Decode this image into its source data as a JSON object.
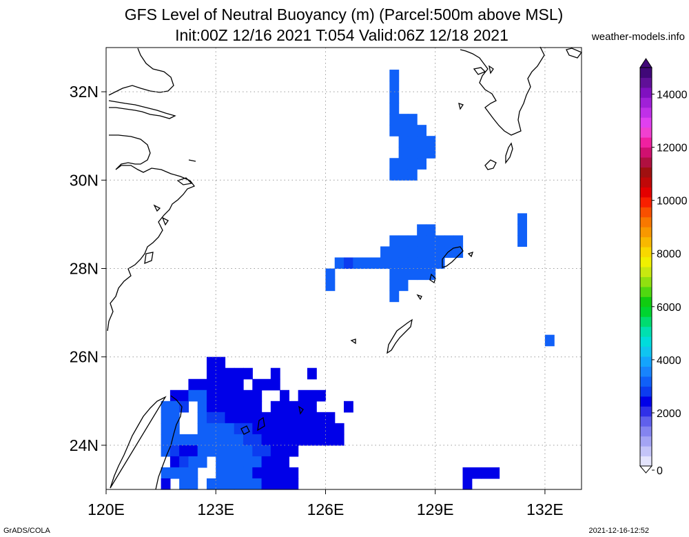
{
  "title_line1": "GFS Level of Neutral Buoyancy (m) (Parcel:500m above MSL)",
  "title_line2": "Init:00Z 12/16 2021 T:054 Valid:06Z 12/18 2021",
  "credit": "weather-models.info",
  "footer_left": "GrADS/COLA",
  "footer_right": "2021-12-16-12:52",
  "map": {
    "lon_range": [
      120,
      133
    ],
    "lat_range": [
      23,
      33
    ],
    "lon_ticks": [
      {
        "value": 120,
        "label": "120E"
      },
      {
        "value": 123,
        "label": "123E"
      },
      {
        "value": 126,
        "label": "126E"
      },
      {
        "value": 129,
        "label": "129E"
      },
      {
        "value": 132,
        "label": "132E"
      }
    ],
    "lat_ticks": [
      {
        "value": 24,
        "label": "24N"
      },
      {
        "value": 26,
        "label": "26N"
      },
      {
        "value": 28,
        "label": "28N"
      },
      {
        "value": 30,
        "label": "30N"
      },
      {
        "value": 32,
        "label": "32N"
      }
    ],
    "grid": "dotted"
  },
  "colorbar": {
    "range": [
      0,
      15000
    ],
    "tick_labels": [
      {
        "value": 0,
        "label": "0"
      },
      {
        "value": 2000,
        "label": "2000"
      },
      {
        "value": 4000,
        "label": "4000"
      },
      {
        "value": 6000,
        "label": "6000"
      },
      {
        "value": 8000,
        "label": "8000"
      },
      {
        "value": 10000,
        "label": "10000"
      },
      {
        "value": 12000,
        "label": "12000"
      },
      {
        "value": 14000,
        "label": "14000"
      }
    ],
    "colors": [
      "#e4e4fc",
      "#c4c4f8",
      "#a4a4f4",
      "#8484f0",
      "#6060ec",
      "#3030e8",
      "#0000e8",
      "#0c3cf0",
      "#1060f8",
      "#1884fc",
      "#14a4fc",
      "#10c4f0",
      "#00dcdc",
      "#00e0b0",
      "#00dc70",
      "#00d430",
      "#10cc10",
      "#50d810",
      "#90e010",
      "#c8e810",
      "#f0f000",
      "#f8d800",
      "#f8b800",
      "#f89800",
      "#f87800",
      "#f85000",
      "#f82000",
      "#e40000",
      "#c00808",
      "#a01010",
      "#b01040",
      "#d01070",
      "#f020a0",
      "#f040d0",
      "#e040f0",
      "#c030e8",
      "#a020d8",
      "#8010c0",
      "#601098",
      "#400878"
    ],
    "values_per_color": 375
  },
  "field": {
    "lon0": 120,
    "lat0": 23,
    "cell_deg": 0.25,
    "cells": [
      [
        27.75,
        32.25,
        "#1060f8"
      ],
      [
        27.75,
        32.0,
        "#1060f8"
      ],
      [
        27.75,
        31.75,
        "#1060f8"
      ],
      [
        27.75,
        31.5,
        "#1060f8"
      ],
      [
        27.75,
        31.25,
        "#1060f8"
      ],
      [
        28.0,
        31.25,
        "#1060f8"
      ],
      [
        28.25,
        31.25,
        "#1060f8"
      ],
      [
        27.75,
        31.0,
        "#1060f8"
      ],
      [
        28.0,
        31.0,
        "#1060f8"
      ],
      [
        28.25,
        31.0,
        "#1060f8"
      ],
      [
        28.5,
        31.0,
        "#1060f8"
      ],
      [
        28.0,
        30.75,
        "#1060f8"
      ],
      [
        28.25,
        30.75,
        "#1060f8"
      ],
      [
        28.5,
        30.75,
        "#1060f8"
      ],
      [
        28.75,
        30.75,
        "#1060f8"
      ],
      [
        28.0,
        30.5,
        "#1060f8"
      ],
      [
        28.25,
        30.5,
        "#1060f8"
      ],
      [
        28.5,
        30.5,
        "#1060f8"
      ],
      [
        28.75,
        30.5,
        "#1060f8"
      ],
      [
        27.75,
        30.25,
        "#1060f8"
      ],
      [
        28.0,
        30.25,
        "#1060f8"
      ],
      [
        28.25,
        30.25,
        "#1060f8"
      ],
      [
        28.5,
        30.25,
        "#1060f8"
      ],
      [
        27.75,
        30.0,
        "#1060f8"
      ],
      [
        28.0,
        30.0,
        "#1060f8"
      ],
      [
        28.25,
        30.0,
        "#1060f8"
      ],
      [
        31.25,
        29.0,
        "#1060f8"
      ],
      [
        31.25,
        28.75,
        "#1060f8"
      ],
      [
        31.25,
        28.5,
        "#1060f8"
      ],
      [
        28.5,
        28.75,
        "#1060f8"
      ],
      [
        28.75,
        28.75,
        "#1060f8"
      ],
      [
        27.75,
        28.5,
        "#1060f8"
      ],
      [
        28.0,
        28.5,
        "#1060f8"
      ],
      [
        28.25,
        28.5,
        "#1060f8"
      ],
      [
        28.5,
        28.5,
        "#1060f8"
      ],
      [
        28.75,
        28.5,
        "#1060f8"
      ],
      [
        29.0,
        28.5,
        "#1060f8"
      ],
      [
        29.25,
        28.5,
        "#1060f8"
      ],
      [
        29.5,
        28.5,
        "#1060f8"
      ],
      [
        27.5,
        28.25,
        "#1060f8"
      ],
      [
        27.75,
        28.25,
        "#1060f8"
      ],
      [
        28.0,
        28.25,
        "#1060f8"
      ],
      [
        28.25,
        28.25,
        "#1060f8"
      ],
      [
        28.5,
        28.25,
        "#1060f8"
      ],
      [
        28.75,
        28.25,
        "#1060f8"
      ],
      [
        29.0,
        28.25,
        "#1060f8"
      ],
      [
        29.25,
        28.25,
        "#1060f8"
      ],
      [
        29.5,
        28.25,
        "#1060f8"
      ],
      [
        26.25,
        28.0,
        "#1060f8"
      ],
      [
        26.5,
        28.0,
        "#0c3cf0"
      ],
      [
        26.75,
        28.0,
        "#1060f8"
      ],
      [
        27.0,
        28.0,
        "#1060f8"
      ],
      [
        27.25,
        28.0,
        "#1060f8"
      ],
      [
        27.5,
        28.0,
        "#1060f8"
      ],
      [
        27.75,
        28.0,
        "#1060f8"
      ],
      [
        28.0,
        28.0,
        "#1060f8"
      ],
      [
        28.25,
        28.0,
        "#1060f8"
      ],
      [
        28.5,
        28.0,
        "#1060f8"
      ],
      [
        28.75,
        28.0,
        "#1060f8"
      ],
      [
        29.0,
        28.0,
        "#1060f8"
      ],
      [
        26.0,
        27.75,
        "#1060f8"
      ],
      [
        27.75,
        27.75,
        "#1060f8"
      ],
      [
        28.0,
        27.75,
        "#1060f8"
      ],
      [
        28.25,
        27.75,
        "#1060f8"
      ],
      [
        28.5,
        27.75,
        "#1060f8"
      ],
      [
        28.75,
        27.75,
        "#1060f8"
      ],
      [
        26.0,
        27.5,
        "#1060f8"
      ],
      [
        27.75,
        27.5,
        "#1060f8"
      ],
      [
        28.0,
        27.5,
        "#1060f8"
      ],
      [
        27.75,
        27.25,
        "#1060f8"
      ],
      [
        32.0,
        26.25,
        "#1060f8"
      ],
      [
        122.75,
        25.75,
        "#0000e8"
      ],
      [
        123.0,
        25.75,
        "#0000e8"
      ],
      [
        122.75,
        25.5,
        "#0000e8"
      ],
      [
        123.0,
        25.5,
        "#0000e8"
      ],
      [
        123.25,
        25.5,
        "#0000e8"
      ],
      [
        123.5,
        25.5,
        "#0000e8"
      ],
      [
        123.75,
        25.5,
        "#0000e8"
      ],
      [
        124.5,
        25.5,
        "#0000e8"
      ],
      [
        125.5,
        25.5,
        "#0000e8"
      ]
    ],
    "blocks": [
      [
        122.25,
        25.25,
        "#0000e8",
        6,
        1
      ],
      [
        124.0,
        25.25,
        "#0000e8",
        3,
        1
      ],
      [
        121.75,
        25.0,
        "#0000e8",
        2,
        1
      ],
      [
        122.25,
        25.0,
        "#1060f8",
        1,
        1
      ],
      [
        122.5,
        25.0,
        "#1060f8",
        1,
        1
      ],
      [
        122.75,
        25.0,
        "#0000e8",
        6,
        1
      ],
      [
        124.75,
        25.0,
        "#0000e8",
        1,
        1
      ],
      [
        125.25,
        25.0,
        "#0000e8",
        3,
        1
      ],
      [
        121.5,
        24.75,
        "#1060f8",
        2,
        1
      ],
      [
        121.75,
        24.75,
        "#1060f8",
        1,
        1
      ],
      [
        122.0,
        24.75,
        "#0c3cf0",
        1,
        1
      ],
      [
        122.5,
        24.75,
        "#1060f8",
        1,
        1
      ],
      [
        122.75,
        24.75,
        "#0000e8",
        5,
        1
      ],
      [
        124.0,
        24.75,
        "#0000e8",
        1,
        1
      ],
      [
        124.5,
        24.75,
        "#0000e8",
        5,
        1
      ],
      [
        126.5,
        24.75,
        "#0000e8",
        1,
        1
      ],
      [
        121.5,
        24.5,
        "#1060f8",
        2,
        1
      ],
      [
        122.5,
        24.5,
        "#1060f8",
        1,
        1
      ],
      [
        122.75,
        24.5,
        "#0c3cf0",
        2,
        1
      ],
      [
        123.25,
        24.5,
        "#0000e8",
        12,
        1
      ],
      [
        121.5,
        24.25,
        "#1060f8",
        2,
        1
      ],
      [
        122.5,
        24.25,
        "#1060f8",
        1,
        1
      ],
      [
        122.75,
        24.25,
        "#1060f8",
        3,
        1
      ],
      [
        123.5,
        24.25,
        "#0c3cf0",
        2,
        1
      ],
      [
        124.0,
        24.25,
        "#0000e8",
        10,
        1
      ],
      [
        121.5,
        24.0,
        "#1060f8",
        2,
        1
      ],
      [
        122.0,
        24.0,
        "#1060f8",
        4,
        1
      ],
      [
        123.0,
        24.0,
        "#1060f8",
        3,
        1
      ],
      [
        123.75,
        24.0,
        "#0c3cf0",
        2,
        1
      ],
      [
        124.25,
        24.0,
        "#0000e8",
        8,
        1
      ],
      [
        126.25,
        24.0,
        "#0000e8",
        1,
        1
      ],
      [
        121.5,
        23.75,
        "#1060f8",
        1,
        1
      ],
      [
        121.75,
        23.75,
        "#0c3cf0",
        1,
        1
      ],
      [
        122.0,
        23.75,
        "#0000e8",
        2,
        1
      ],
      [
        122.5,
        23.75,
        "#1060f8",
        2,
        1
      ],
      [
        123.0,
        23.75,
        "#1060f8",
        4,
        1
      ],
      [
        124.0,
        23.75,
        "#0c3cf0",
        2,
        1
      ],
      [
        124.5,
        23.75,
        "#0000e8",
        3,
        1
      ],
      [
        121.75,
        23.5,
        "#0000e8",
        1,
        1
      ],
      [
        122.0,
        23.5,
        "#0c3cf0",
        1,
        1
      ],
      [
        122.25,
        23.5,
        "#1060f8",
        2,
        1
      ],
      [
        123.0,
        23.5,
        "#1060f8",
        3,
        1
      ],
      [
        123.75,
        23.5,
        "#1060f8",
        2,
        1
      ],
      [
        124.25,
        23.5,
        "#0000e8",
        3,
        1
      ],
      [
        121.5,
        23.25,
        "#1060f8",
        2,
        1
      ],
      [
        122.0,
        23.25,
        "#1060f8",
        2,
        1
      ],
      [
        123.0,
        23.25,
        "#1060f8",
        3,
        1
      ],
      [
        123.75,
        23.25,
        "#1060f8",
        1,
        1
      ],
      [
        124.0,
        23.25,
        "#0000e8",
        4,
        1
      ],
      [
        125.0,
        23.25,
        "#0000e8",
        1,
        1
      ],
      [
        129.75,
        23.25,
        "#0000e8",
        2,
        1
      ],
      [
        130.25,
        23.25,
        "#0000e8",
        2,
        1
      ],
      [
        121.5,
        23.0,
        "#0000e8",
        1,
        1
      ],
      [
        122.0,
        23.0,
        "#1060f8",
        1,
        1
      ],
      [
        122.25,
        23.0,
        "#1060f8",
        1,
        1
      ],
      [
        122.75,
        23.0,
        "#1060f8",
        3,
        1
      ],
      [
        123.5,
        23.0,
        "#1060f8",
        3,
        1
      ],
      [
        124.25,
        23.0,
        "#0000e8",
        4,
        1
      ],
      [
        129.75,
        23.0,
        "#0000e8",
        1,
        1
      ]
    ]
  }
}
